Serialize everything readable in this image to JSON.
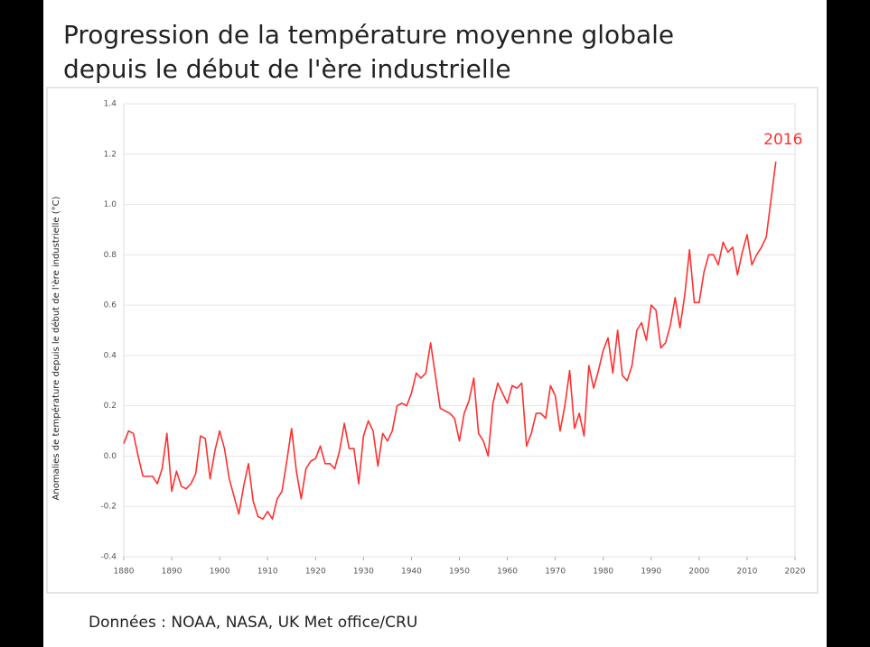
{
  "chart_data": {
    "type": "line",
    "title": "Progression de la température moyenne globale",
    "subtitle": "depuis le début de l'ère industrielle",
    "y_label": "Anomalies de température depuis le début de l'ère industrielle (°C)",
    "annotation": "2016",
    "source": "Données : NOAA, NASA, UK Met office/CRU",
    "color": "#ff3030",
    "grid": true,
    "xlim": [
      1880,
      2020
    ],
    "xticks": [
      1880,
      1890,
      1900,
      1910,
      1920,
      1930,
      1940,
      1950,
      1960,
      1970,
      1980,
      1990,
      2000,
      2010,
      2020
    ],
    "ylim": [
      -0.4,
      1.4
    ],
    "yticks": [
      {
        "value": 1.4,
        "label": "1.4"
      },
      {
        "value": 1.2,
        "label": "1.2"
      },
      {
        "value": 1.0,
        "label": "1.0"
      },
      {
        "value": 0.8,
        "label": "0.8"
      },
      {
        "value": 0.6,
        "label": "0.6"
      },
      {
        "value": 0.4,
        "label": "0.4"
      },
      {
        "value": 0.2,
        "label": "0.2"
      },
      {
        "value": 0.0,
        "label": "0.0"
      },
      {
        "value": -0.2,
        "label": "-0.2"
      },
      {
        "value": -0.4,
        "label": "-0.4"
      }
    ],
    "x": [
      1880,
      1881,
      1882,
      1883,
      1884,
      1885,
      1886,
      1887,
      1888,
      1889,
      1890,
      1891,
      1892,
      1893,
      1894,
      1895,
      1896,
      1897,
      1898,
      1899,
      1900,
      1901,
      1902,
      1903,
      1904,
      1905,
      1906,
      1907,
      1908,
      1909,
      1910,
      1911,
      1912,
      1913,
      1914,
      1915,
      1916,
      1917,
      1918,
      1919,
      1920,
      1921,
      1922,
      1923,
      1924,
      1925,
      1926,
      1927,
      1928,
      1929,
      1930,
      1931,
      1932,
      1933,
      1934,
      1935,
      1936,
      1937,
      1938,
      1939,
      1940,
      1941,
      1942,
      1943,
      1944,
      1945,
      1946,
      1947,
      1948,
      1949,
      1950,
      1951,
      1952,
      1953,
      1954,
      1955,
      1956,
      1957,
      1958,
      1959,
      1960,
      1961,
      1962,
      1963,
      1964,
      1965,
      1966,
      1967,
      1968,
      1969,
      1970,
      1971,
      1972,
      1973,
      1974,
      1975,
      1976,
      1977,
      1978,
      1979,
      1980,
      1981,
      1982,
      1983,
      1984,
      1985,
      1986,
      1987,
      1988,
      1989,
      1990,
      1991,
      1992,
      1993,
      1994,
      1995,
      1996,
      1997,
      1998,
      1999,
      2000,
      2001,
      2002,
      2003,
      2004,
      2005,
      2006,
      2007,
      2008,
      2009,
      2010,
      2011,
      2012,
      2013,
      2014,
      2015,
      2016
    ],
    "values": [
      0.05,
      0.1,
      0.09,
      0.0,
      -0.08,
      -0.08,
      -0.08,
      -0.11,
      -0.05,
      0.09,
      -0.14,
      -0.06,
      -0.12,
      -0.13,
      -0.11,
      -0.07,
      0.08,
      0.07,
      -0.09,
      0.02,
      0.1,
      0.03,
      -0.09,
      -0.16,
      -0.23,
      -0.12,
      -0.03,
      -0.18,
      -0.24,
      -0.25,
      -0.22,
      -0.25,
      -0.17,
      -0.14,
      -0.02,
      0.11,
      -0.06,
      -0.17,
      -0.05,
      -0.02,
      -0.01,
      0.04,
      -0.03,
      -0.03,
      -0.05,
      0.02,
      0.13,
      0.03,
      0.03,
      -0.11,
      0.08,
      0.14,
      0.1,
      -0.04,
      0.09,
      0.06,
      0.1,
      0.2,
      0.21,
      0.2,
      0.25,
      0.33,
      0.31,
      0.33,
      0.45,
      0.32,
      0.19,
      0.18,
      0.17,
      0.15,
      0.06,
      0.17,
      0.22,
      0.31,
      0.09,
      0.06,
      0.0,
      0.21,
      0.29,
      0.25,
      0.21,
      0.28,
      0.27,
      0.29,
      0.04,
      0.09,
      0.17,
      0.17,
      0.15,
      0.28,
      0.24,
      0.1,
      0.2,
      0.34,
      0.11,
      0.17,
      0.08,
      0.36,
      0.27,
      0.34,
      0.42,
      0.47,
      0.33,
      0.5,
      0.32,
      0.3,
      0.36,
      0.5,
      0.53,
      0.46,
      0.6,
      0.58,
      0.43,
      0.45,
      0.52,
      0.63,
      0.51,
      0.64,
      0.82,
      0.61,
      0.61,
      0.73,
      0.8,
      0.8,
      0.76,
      0.85,
      0.81,
      0.83,
      0.72,
      0.81,
      0.88,
      0.76,
      0.8,
      0.83,
      0.87,
      1.02,
      1.17
    ]
  }
}
